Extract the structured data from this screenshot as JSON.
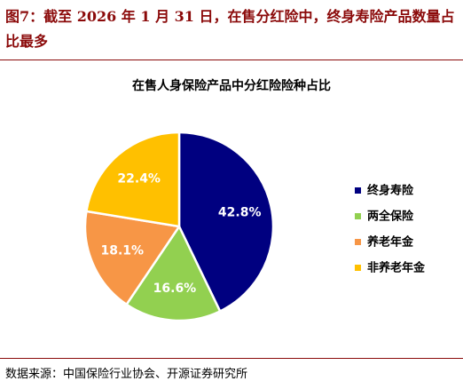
{
  "figure": {
    "title": "图7：截至 2026 年 1 月 31 日，在售分红险中，终身寿险产品数量占比最多",
    "source": "数据来源：中国保险行业协会、开源证券研究所"
  },
  "chart_data": {
    "type": "pie",
    "title": "在售人身保险产品中分红险险种占比",
    "categories": [
      "终身寿险",
      "两全保险",
      "养老年金",
      "非养老年金"
    ],
    "values": [
      42.8,
      16.6,
      18.1,
      22.4
    ],
    "labels": [
      "42.8%",
      "16.6%",
      "18.1%",
      "22.4%"
    ],
    "colors": [
      "#000080",
      "#92d050",
      "#f79646",
      "#ffc000"
    ],
    "label_colors": [
      "#ffffff",
      "#ffffff",
      "#ffffff",
      "#ffffff"
    ],
    "unit": "%",
    "legend_position": "right"
  }
}
